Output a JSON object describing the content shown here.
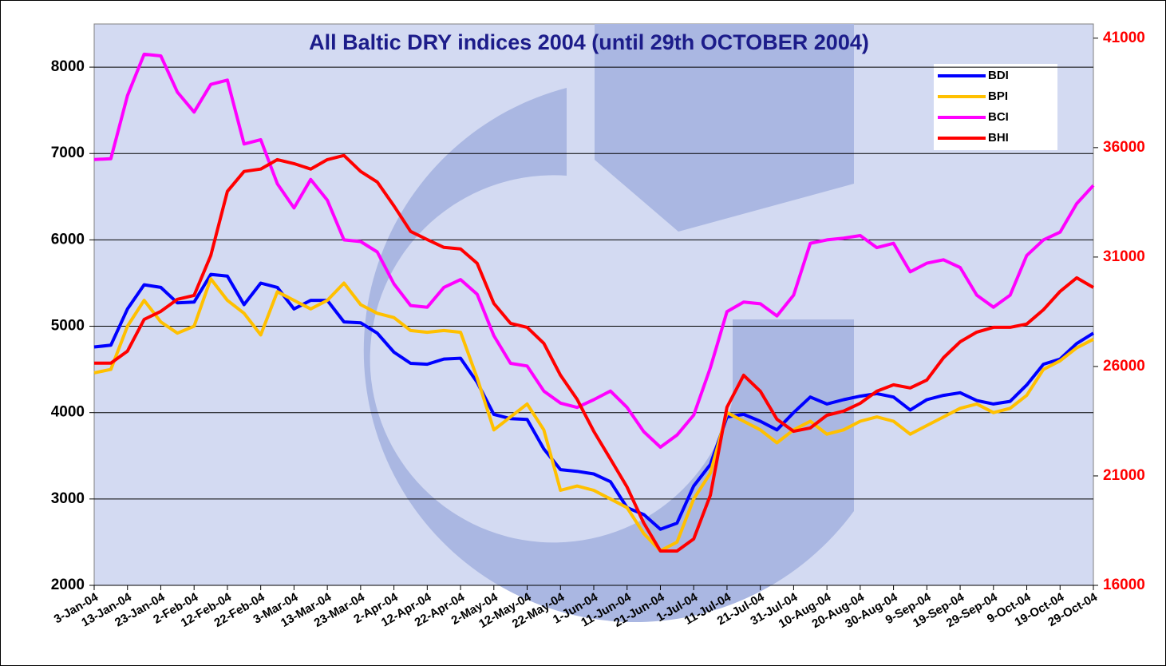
{
  "chart_data": {
    "type": "line",
    "title": "All Baltic DRY indices 2004 (until 29th OCTOBER 2004)",
    "categories": [
      "3-Jan-04",
      null,
      "13-Jan-04",
      null,
      "23-Jan-04",
      null,
      "2-Feb-04",
      null,
      "12-Feb-04",
      null,
      "22-Feb-04",
      null,
      "3-Mar-04",
      null,
      "13-Mar-04",
      null,
      "23-Mar-04",
      null,
      "2-Apr-04",
      null,
      "12-Apr-04",
      null,
      "22-Apr-04",
      null,
      "2-May-04",
      null,
      "12-May-04",
      null,
      "22-May-04",
      null,
      "1-Jun-04",
      null,
      "11-Jun-04",
      null,
      "21-Jun-04",
      null,
      "1-Jul-04",
      null,
      "11-Jul-04",
      null,
      "21-Jul-04",
      null,
      "31-Jul-04",
      null,
      "10-Aug-04",
      null,
      "20-Aug-04",
      null,
      "30-Aug-04",
      null,
      "9-Sep-04",
      null,
      "19-Sep-04",
      null,
      "29-Sep-04",
      null,
      "9-Oct-04",
      null,
      "19-Oct-04",
      null,
      "29-Oct-04"
    ],
    "series": [
      {
        "name": "BDI",
        "color": "#0000ff",
        "values": [
          4760,
          4780,
          5200,
          5480,
          5450,
          5270,
          5280,
          5600,
          5580,
          5250,
          5500,
          5450,
          5200,
          5300,
          5300,
          5050,
          5040,
          4920,
          4700,
          4570,
          4560,
          4620,
          4630,
          4350,
          3980,
          3930,
          3920,
          3580,
          3340,
          3320,
          3290,
          3200,
          2900,
          2820,
          2650,
          2720,
          3150,
          3400,
          3950,
          3980,
          3900,
          3800,
          4000,
          4180,
          4100,
          4150,
          4190,
          4220,
          4180,
          4030,
          4150,
          4200,
          4230,
          4140,
          4100,
          4130,
          4320,
          4560,
          4620,
          4800,
          4920
        ]
      },
      {
        "name": "BPI",
        "color": "#ffc000",
        "values": [
          4460,
          4500,
          5000,
          5300,
          5050,
          4920,
          5000,
          5550,
          5300,
          5150,
          4900,
          5400,
          5300,
          5200,
          5300,
          5500,
          5250,
          5150,
          5100,
          4950,
          4930,
          4950,
          4930,
          4400,
          3800,
          3950,
          4100,
          3800,
          3100,
          3150,
          3100,
          3000,
          2900,
          2600,
          2400,
          2500,
          3000,
          3300,
          4000,
          3900,
          3800,
          3650,
          3800,
          3900,
          3750,
          3800,
          3900,
          3950,
          3900,
          3750,
          3850,
          3950,
          4050,
          4100,
          4000,
          4050,
          4200,
          4500,
          4600,
          4750,
          4850
        ]
      },
      {
        "name": "BCI",
        "color": "#ff00ff",
        "values": [
          6930,
          6940,
          7670,
          8150,
          8130,
          7710,
          7480,
          7800,
          7850,
          7110,
          7160,
          6650,
          6370,
          6700,
          6460,
          6000,
          5980,
          5860,
          5490,
          5240,
          5220,
          5450,
          5540,
          5370,
          4890,
          4570,
          4540,
          4250,
          4110,
          4060,
          4150,
          4250,
          4060,
          3780,
          3600,
          3740,
          3970,
          4520,
          5170,
          5280,
          5260,
          5120,
          5360,
          5960,
          6000,
          6020,
          6050,
          5910,
          5960,
          5630,
          5730,
          5770,
          5680,
          5360,
          5220,
          5360,
          5820,
          6000,
          6090,
          6420,
          6630
        ]
      },
      {
        "name": "BHI",
        "color": "#ff0000",
        "axis": "y2",
        "values": [
          26150,
          26150,
          26700,
          28150,
          28520,
          29070,
          29250,
          31070,
          34000,
          34910,
          35020,
          35450,
          35270,
          35020,
          35450,
          35640,
          34910,
          34430,
          33340,
          32170,
          31800,
          31440,
          31370,
          30710,
          28880,
          27970,
          27790,
          27060,
          25600,
          24500,
          23040,
          21770,
          20490,
          18850,
          17570,
          17570,
          18120,
          20120,
          24140,
          25600,
          24870,
          23590,
          23040,
          23190,
          23770,
          23960,
          24320,
          24870,
          25160,
          25020,
          25380,
          26400,
          27130,
          27570,
          27790,
          27790,
          27940,
          28590,
          29430,
          30050,
          29610
        ]
      }
    ],
    "ylim": [
      2000,
      8500
    ],
    "yticks": [
      2000,
      3000,
      4000,
      5000,
      6000,
      7000,
      8000
    ],
    "y2lim": [
      16000,
      41650
    ],
    "y2ticks": [
      16000,
      21000,
      26000,
      31000,
      36000,
      41000
    ],
    "y2color": "#ff0000",
    "grid": true,
    "legend": "upper right"
  }
}
